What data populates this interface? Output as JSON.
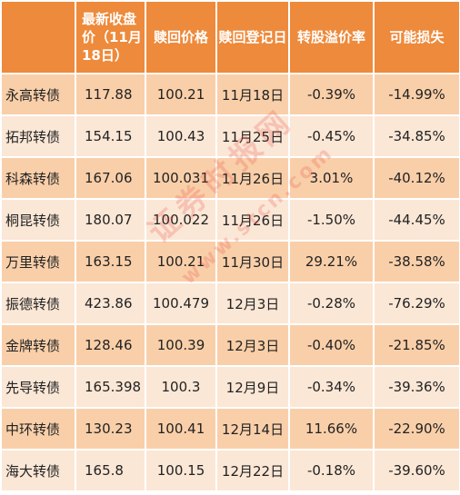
{
  "table": {
    "headers": {
      "name": "",
      "close": "最新收盘价（11月18日）",
      "redeem_price": "赎回价格",
      "record_date": "赎回登记日",
      "premium": "转股溢价率",
      "loss": "可能损失"
    },
    "rows": [
      {
        "name": "永高转债",
        "close": "117.88",
        "redeem_price": "100.21",
        "record_date": "11月18日",
        "premium": "-0.39%",
        "loss": "-14.99%"
      },
      {
        "name": "拓邦转债",
        "close": "154.15",
        "redeem_price": "100.43",
        "record_date": "11月25日",
        "premium": "-0.45%",
        "loss": "-34.85%"
      },
      {
        "name": "科森转债",
        "close": "167.06",
        "redeem_price": "100.031",
        "record_date": "11月26日",
        "premium": "3.01%",
        "loss": "-40.12%"
      },
      {
        "name": "桐昆转债",
        "close": "180.07",
        "redeem_price": "100.022",
        "record_date": "11月26日",
        "premium": "-1.50%",
        "loss": "-44.45%"
      },
      {
        "name": "万里转债",
        "close": "163.15",
        "redeem_price": "100.21",
        "record_date": "11月30日",
        "premium": "29.21%",
        "loss": "-38.58%"
      },
      {
        "name": "振德转债",
        "close": "423.86",
        "redeem_price": "100.479",
        "record_date": "12月3日",
        "premium": "-0.28%",
        "loss": "-76.29%"
      },
      {
        "name": "金牌转债",
        "close": "128.46",
        "redeem_price": "100.39",
        "record_date": "12月3日",
        "premium": "-0.40%",
        "loss": "-21.85%"
      },
      {
        "name": "先导转债",
        "close": "165.398",
        "redeem_price": "100.3",
        "record_date": "12月9日",
        "premium": "-0.34%",
        "loss": "-39.36%"
      },
      {
        "name": "中环转债",
        "close": "130.23",
        "redeem_price": "100.41",
        "record_date": "12月14日",
        "premium": "11.66%",
        "loss": "-22.90%"
      },
      {
        "name": "海大转债",
        "close": "165.8",
        "redeem_price": "100.15",
        "record_date": "12月22日",
        "premium": "-0.18%",
        "loss": "-39.60%"
      }
    ]
  },
  "watermark": {
    "text": "证券时报网",
    "url": "www.stcn.com"
  },
  "colors": {
    "header_bg": "#ee8a3b",
    "row_odd_bg": "#f9cfa9",
    "row_even_bg": "#fbe7d6",
    "watermark": "#e8443a"
  }
}
